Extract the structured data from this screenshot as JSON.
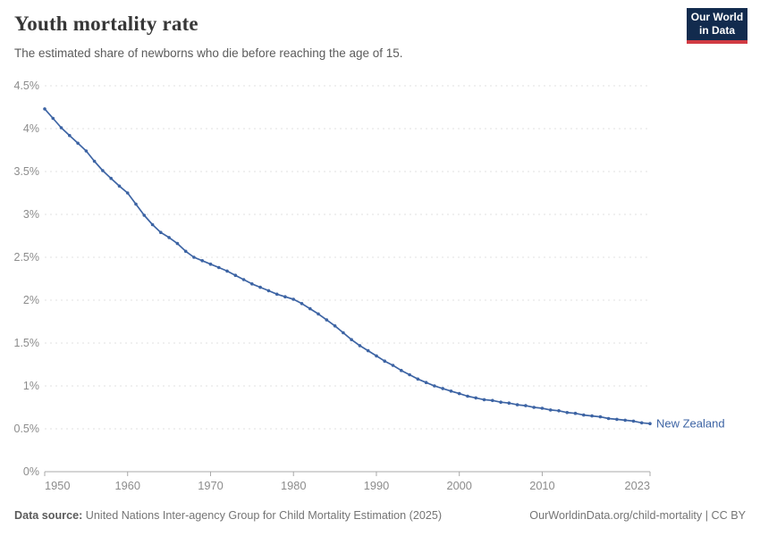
{
  "header": {
    "title": "Youth mortality rate",
    "subtitle": "The estimated share of newborns who die before reaching the age of 15.",
    "logo": {
      "line1": "Our World",
      "line2": "in Data"
    }
  },
  "chart_data": {
    "type": "line",
    "title": "Youth mortality rate",
    "entity_label": "New Zealand",
    "ylim": [
      0,
      4.5
    ],
    "ytick_values": [
      0,
      0.5,
      1,
      1.5,
      2,
      2.5,
      3,
      3.5,
      4,
      4.5
    ],
    "ytick_labels": [
      "0%",
      "0.5%",
      "1%",
      "1.5%",
      "2%",
      "2.5%",
      "3%",
      "3.5%",
      "4%",
      "4.5%"
    ],
    "xtick_values": [
      1950,
      1960,
      1970,
      1980,
      1990,
      2000,
      2010,
      2023
    ],
    "xtick_labels": [
      "1950",
      "1960",
      "1970",
      "1980",
      "1990",
      "2000",
      "2010",
      "2023"
    ],
    "grid": true,
    "legend_position": "end-of-line",
    "x": [
      1950,
      1951,
      1952,
      1953,
      1954,
      1955,
      1956,
      1957,
      1958,
      1959,
      1960,
      1961,
      1962,
      1963,
      1964,
      1965,
      1966,
      1967,
      1968,
      1969,
      1970,
      1971,
      1972,
      1973,
      1974,
      1975,
      1976,
      1977,
      1978,
      1979,
      1980,
      1981,
      1982,
      1983,
      1984,
      1985,
      1986,
      1987,
      1988,
      1989,
      1990,
      1991,
      1992,
      1993,
      1994,
      1995,
      1996,
      1997,
      1998,
      1999,
      2000,
      2001,
      2002,
      2003,
      2004,
      2005,
      2006,
      2007,
      2008,
      2009,
      2010,
      2011,
      2012,
      2013,
      2014,
      2015,
      2016,
      2017,
      2018,
      2019,
      2020,
      2021,
      2022,
      2023
    ],
    "series": [
      {
        "name": "New Zealand",
        "unit": "%",
        "values": [
          4.23,
          4.12,
          4.01,
          3.92,
          3.83,
          3.74,
          3.62,
          3.51,
          3.42,
          3.33,
          3.25,
          3.12,
          2.99,
          2.88,
          2.79,
          2.73,
          2.66,
          2.57,
          2.5,
          2.46,
          2.42,
          2.38,
          2.34,
          2.29,
          2.24,
          2.19,
          2.15,
          2.11,
          2.07,
          2.04,
          2.01,
          1.96,
          1.9,
          1.84,
          1.77,
          1.7,
          1.62,
          1.54,
          1.47,
          1.41,
          1.35,
          1.29,
          1.24,
          1.18,
          1.13,
          1.08,
          1.04,
          1.0,
          0.97,
          0.94,
          0.91,
          0.88,
          0.86,
          0.84,
          0.83,
          0.81,
          0.8,
          0.78,
          0.77,
          0.75,
          0.74,
          0.72,
          0.71,
          0.69,
          0.68,
          0.66,
          0.65,
          0.64,
          0.62,
          0.61,
          0.6,
          0.59,
          0.57,
          0.56
        ]
      }
    ]
  },
  "footer": {
    "source_label": "Data source:",
    "source_text": " United Nations Inter-agency Group for Child Mortality Estimation (2025)",
    "right_text": "OurWorldinData.org/child-mortality | CC BY"
  },
  "colors": {
    "line": "#3d64a4",
    "entity_label": "#3d64a4",
    "grid": "#e1e1e1",
    "axis": "#a8a8a8",
    "tick_label": "#8c8c8c",
    "logo_bg": "#122b4e",
    "logo_bar": "#d13b43"
  }
}
